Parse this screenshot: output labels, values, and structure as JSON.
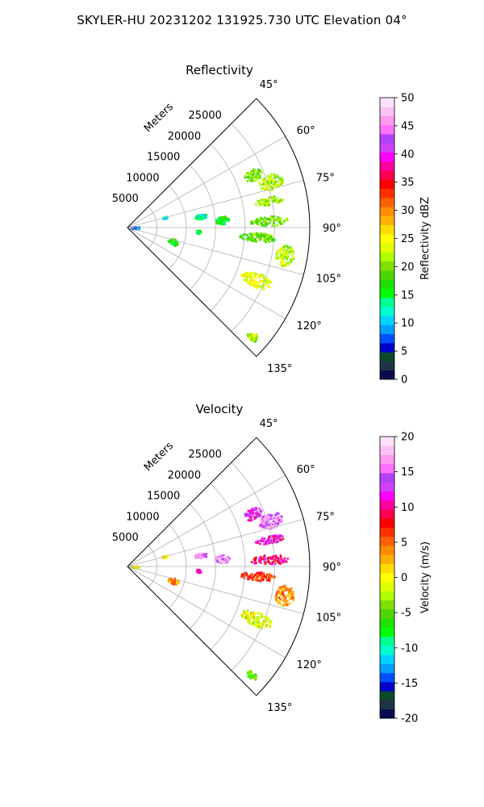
{
  "suptitle": "SKYLER-HU  20231202  131925.730 UTC Elevation 04°",
  "chart_data": [
    {
      "type": "heatmap",
      "projection": "polar-sector",
      "title": "Reflectivity",
      "theta_range_deg": [
        45,
        135
      ],
      "theta_ticks": [
        "45°",
        "60°",
        "75°",
        "90°",
        "105°",
        "120°",
        "135°"
      ],
      "r_label": "Meters",
      "r_ticks": [
        5000,
        10000,
        15000,
        20000,
        25000
      ],
      "r_max": 31000,
      "grid": true,
      "colorbar": {
        "label": "Reflectivity dBZ",
        "range": [
          0,
          50
        ],
        "ticks": [
          0,
          5,
          10,
          15,
          20,
          25,
          30,
          35,
          40,
          45,
          50
        ],
        "colors": [
          "#0a0a50",
          "#1e3246",
          "#0a4a2a",
          "#0000c8",
          "#0050ff",
          "#00a0ff",
          "#00d2ff",
          "#00ffd0",
          "#00ff90",
          "#00ff00",
          "#20e000",
          "#50d400",
          "#80e000",
          "#b0ff00",
          "#e0ff00",
          "#ffff00",
          "#ffdc00",
          "#ffb000",
          "#ff8c00",
          "#ff6000",
          "#ff3000",
          "#ff0000",
          "#ff0050",
          "#ff00a0",
          "#ff00ff",
          "#d040ff",
          "#b040ff",
          "#ff70ff",
          "#ff9af0",
          "#ffc0f4",
          "#ffe0fa"
        ]
      },
      "echoes": [
        {
          "theta": 67,
          "r": 23000,
          "dr": 3200,
          "dt": 5,
          "value": 20
        },
        {
          "theta": 72,
          "r": 25500,
          "dr": 4200,
          "dt": 6,
          "value": 22
        },
        {
          "theta": 79,
          "r": 24500,
          "dr": 5000,
          "dt": 3,
          "value": 21
        },
        {
          "theta": 87,
          "r": 24000,
          "dr": 6500,
          "dt": 4,
          "value": 20
        },
        {
          "theta": 94,
          "r": 22000,
          "dr": 6000,
          "dt": 4,
          "value": 19
        },
        {
          "theta": 100,
          "r": 27000,
          "dr": 3200,
          "dt": 8,
          "value": 22
        },
        {
          "theta": 112,
          "r": 23500,
          "dr": 5500,
          "dt": 6,
          "value": 24
        },
        {
          "theta": 85,
          "r": 16000,
          "dr": 2500,
          "dt": 5,
          "value": 16
        },
        {
          "theta": 81,
          "r": 12500,
          "dr": 2200,
          "dt": 4,
          "value": 13
        },
        {
          "theta": 107,
          "r": 8000,
          "dr": 1800,
          "dt": 8,
          "value": 17
        },
        {
          "theta": 93,
          "r": 12000,
          "dr": 800,
          "dt": 3,
          "value": 14
        },
        {
          "theta": 131,
          "r": 28000,
          "dr": 2000,
          "dt": 3,
          "value": 22
        },
        {
          "theta": 88,
          "r": 1200,
          "dr": 1500,
          "dt": 14,
          "value": 8
        },
        {
          "theta": 74,
          "r": 6500,
          "dr": 900,
          "dt": 3,
          "value": 11
        }
      ]
    },
    {
      "type": "heatmap",
      "projection": "polar-sector",
      "title": "Velocity",
      "theta_range_deg": [
        45,
        135
      ],
      "theta_ticks": [
        "45°",
        "60°",
        "75°",
        "90°",
        "105°",
        "120°",
        "135°"
      ],
      "r_label": "Meters",
      "r_ticks": [
        5000,
        10000,
        15000,
        20000,
        25000
      ],
      "r_max": 31000,
      "grid": true,
      "colorbar": {
        "label": "Velocity (m/s)",
        "range": [
          -20,
          20
        ],
        "ticks": [
          -20,
          -15,
          -10,
          -5,
          0,
          5,
          10,
          15,
          20
        ],
        "colors": [
          "#0a0a50",
          "#1e3246",
          "#0a4a2a",
          "#0000c8",
          "#0050ff",
          "#00a0ff",
          "#00d2ff",
          "#00ffd0",
          "#00ff90",
          "#00ff00",
          "#20e000",
          "#50d400",
          "#80e000",
          "#b0ff00",
          "#e0ff00",
          "#ffff00",
          "#ffdc00",
          "#ffb000",
          "#ff8c00",
          "#ff6000",
          "#ff3000",
          "#ff0000",
          "#ff0050",
          "#ff00a0",
          "#ff00ff",
          "#d040ff",
          "#b040ff",
          "#ff70ff",
          "#ff9af0",
          "#ffc0f4",
          "#ffe0fa"
        ]
      },
      "echoes": [
        {
          "theta": 67,
          "r": 23000,
          "dr": 3200,
          "dt": 5,
          "value": 12
        },
        {
          "theta": 72,
          "r": 25500,
          "dr": 4200,
          "dt": 6,
          "value": 15
        },
        {
          "theta": 79,
          "r": 24500,
          "dr": 5000,
          "dt": 3,
          "value": 11
        },
        {
          "theta": 87,
          "r": 24000,
          "dr": 6500,
          "dt": 4,
          "value": 10
        },
        {
          "theta": 94,
          "r": 22000,
          "dr": 6000,
          "dt": 4,
          "value": 6
        },
        {
          "theta": 100,
          "r": 27000,
          "dr": 3200,
          "dt": 8,
          "value": 4
        },
        {
          "theta": 112,
          "r": 23500,
          "dr": 5500,
          "dt": 6,
          "value": -1
        },
        {
          "theta": 85,
          "r": 16000,
          "dr": 2500,
          "dt": 5,
          "value": 16
        },
        {
          "theta": 81,
          "r": 12500,
          "dr": 2200,
          "dt": 4,
          "value": 16
        },
        {
          "theta": 107,
          "r": 8000,
          "dr": 1800,
          "dt": 8,
          "value": 4
        },
        {
          "theta": 93,
          "r": 12000,
          "dr": 800,
          "dt": 3,
          "value": 11
        },
        {
          "theta": 131,
          "r": 28000,
          "dr": 2000,
          "dt": 3,
          "value": -5
        },
        {
          "theta": 88,
          "r": 1200,
          "dr": 1500,
          "dt": 14,
          "value": 0
        },
        {
          "theta": 74,
          "r": 6500,
          "dr": 900,
          "dt": 3,
          "value": 1
        }
      ]
    }
  ]
}
